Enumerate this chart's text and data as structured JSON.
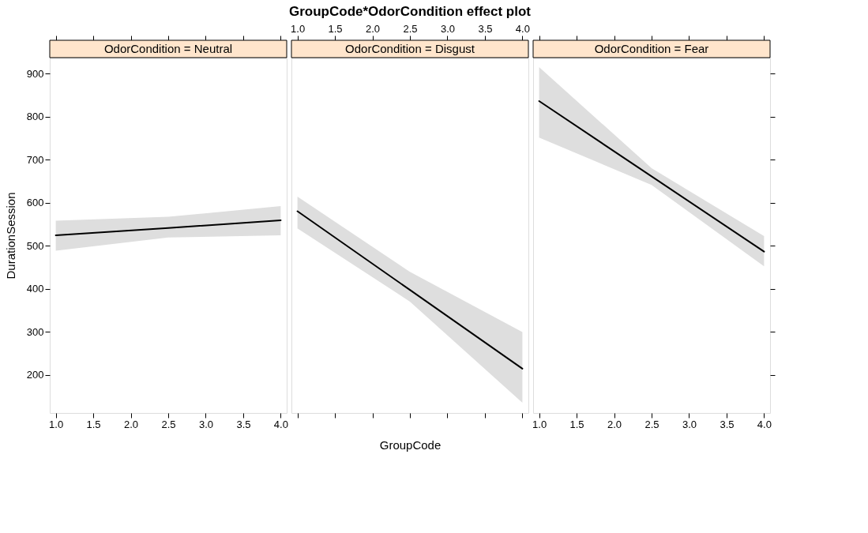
{
  "chart_data": [
    {
      "type": "line",
      "subtitle": "OdorCondition = Neutral",
      "ylabel": "DurationSession",
      "x": [
        1,
        2.5,
        4
      ],
      "series": [
        {
          "color": "#000000",
          "values": [
            524,
            541,
            559
          ],
          "lower": [
            488,
            519,
            524
          ],
          "upper": [
            558,
            567,
            592
          ]
        }
      ],
      "xlim": [
        0.92,
        4.08
      ],
      "ylim": [
        111,
        937
      ],
      "xticks": [
        {
          "value": 1,
          "label": "1.0"
        },
        1.5,
        {
          "value": 2,
          "label": "2.0"
        },
        2.5,
        {
          "value": 3,
          "label": "3.0"
        },
        3.5,
        {
          "value": 4,
          "label": "4.0"
        }
      ],
      "yticks": [
        200,
        300,
        400,
        500,
        600,
        700,
        800,
        900
      ]
    },
    {
      "type": "line",
      "title": "GroupCode*OdorCondition effect plot",
      "subtitle": "OdorCondition = Disgust",
      "xlabel": "GroupCode",
      "x": [
        1,
        2.5,
        4
      ],
      "series": [
        {
          "color": "#000000",
          "values": [
            580,
            397,
            214
          ],
          "lower": [
            540,
            370,
            135
          ],
          "upper": [
            614,
            439,
            299
          ]
        }
      ],
      "xlim": [
        0.92,
        4.08
      ],
      "ylim": [
        111,
        937
      ],
      "xticks": [
        1,
        1.5,
        2,
        2.5,
        3,
        3.5,
        4
      ],
      "x2lim": [
        0.92,
        4.08
      ],
      "x2ticks": [
        {
          "value": 1,
          "label": "1.0"
        },
        1.5,
        {
          "value": 2,
          "label": "2.0"
        },
        2.5,
        {
          "value": 3,
          "label": "3.0"
        },
        3.5,
        {
          "value": 4,
          "label": "4.0"
        }
      ],
      "yticks": [
        200,
        300,
        400,
        500,
        600,
        700,
        800,
        900
      ],
      "tick_labels": false
    },
    {
      "type": "line",
      "subtitle": "OdorCondition = Fear",
      "x": [
        1,
        2.5,
        4
      ],
      "series": [
        {
          "color": "#000000",
          "values": [
            836,
            661,
            486
          ],
          "lower": [
            751,
            641,
            452
          ],
          "upper": [
            915,
            680,
            522
          ]
        }
      ],
      "xlim": [
        0.92,
        4.08
      ],
      "ylim": [
        111,
        937
      ],
      "xticks": [
        {
          "value": 1,
          "label": "1.0"
        },
        1.5,
        {
          "value": 2,
          "label": "2.0"
        },
        2.5,
        {
          "value": 3,
          "label": "3.0"
        },
        3.5,
        {
          "value": 4,
          "label": "4.0"
        }
      ],
      "yticks": [
        200,
        300,
        400,
        500,
        600,
        700,
        800,
        900
      ],
      "tick_labels": "x"
    }
  ]
}
